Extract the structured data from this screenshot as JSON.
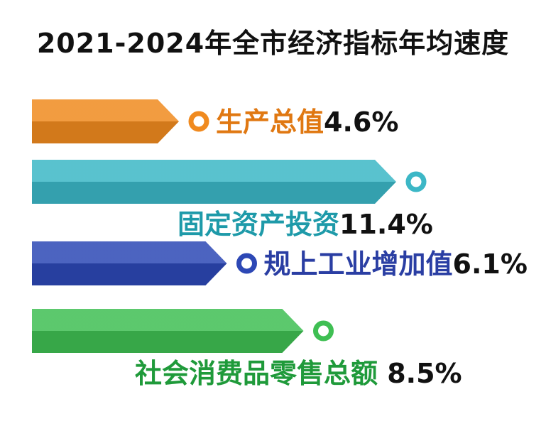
{
  "chart_data": {
    "type": "bar",
    "orientation": "horizontal",
    "title": "2021-2024年全市经济指标年均速度",
    "unit": "%",
    "categories": [
      "生产总值",
      "固定资产投资",
      "规上工业增加值",
      "社会消费品零售总额"
    ],
    "values": [
      4.6,
      11.4,
      6.1,
      8.5
    ],
    "value_labels": [
      "4.6%",
      "11.4%",
      "6.1%",
      "8.5%"
    ],
    "colors": [
      "#f08a1f",
      "#3cb7c6",
      "#2d48b5",
      "#3fbf53"
    ],
    "label_colors": [
      "#e07812",
      "#1e9aa9",
      "#2a3ea3",
      "#1f9a3a"
    ]
  }
}
